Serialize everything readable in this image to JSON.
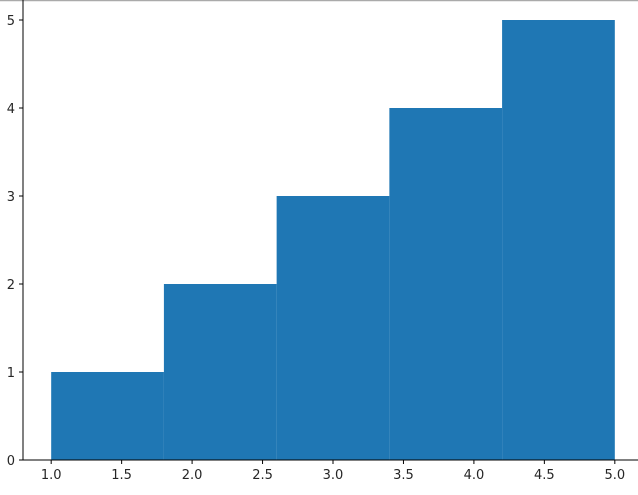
{
  "chart_data": {
    "type": "bar",
    "subtype": "histogram",
    "bin_edges": [
      1.0,
      1.8,
      2.6,
      3.4,
      4.2,
      5.0
    ],
    "values": [
      1,
      2,
      3,
      4,
      5
    ],
    "bar_color": "#1f77b4",
    "title": "",
    "xlabel": "",
    "ylabel": "",
    "xlim": [
      0.8,
      5.2
    ],
    "ylim": [
      0,
      5.25
    ],
    "xticks": [
      1.0,
      1.5,
      2.0,
      2.5,
      3.0,
      3.5,
      4.0,
      4.5,
      5.0
    ],
    "xtick_labels": [
      "1.0",
      "1.5",
      "2.0",
      "2.5",
      "3.0",
      "3.5",
      "4.0",
      "4.5",
      "5.0"
    ],
    "yticks": [
      0,
      1,
      2,
      3,
      4,
      5
    ],
    "ytick_labels": [
      "0",
      "1",
      "2",
      "3",
      "4",
      "5"
    ],
    "grid": false
  }
}
